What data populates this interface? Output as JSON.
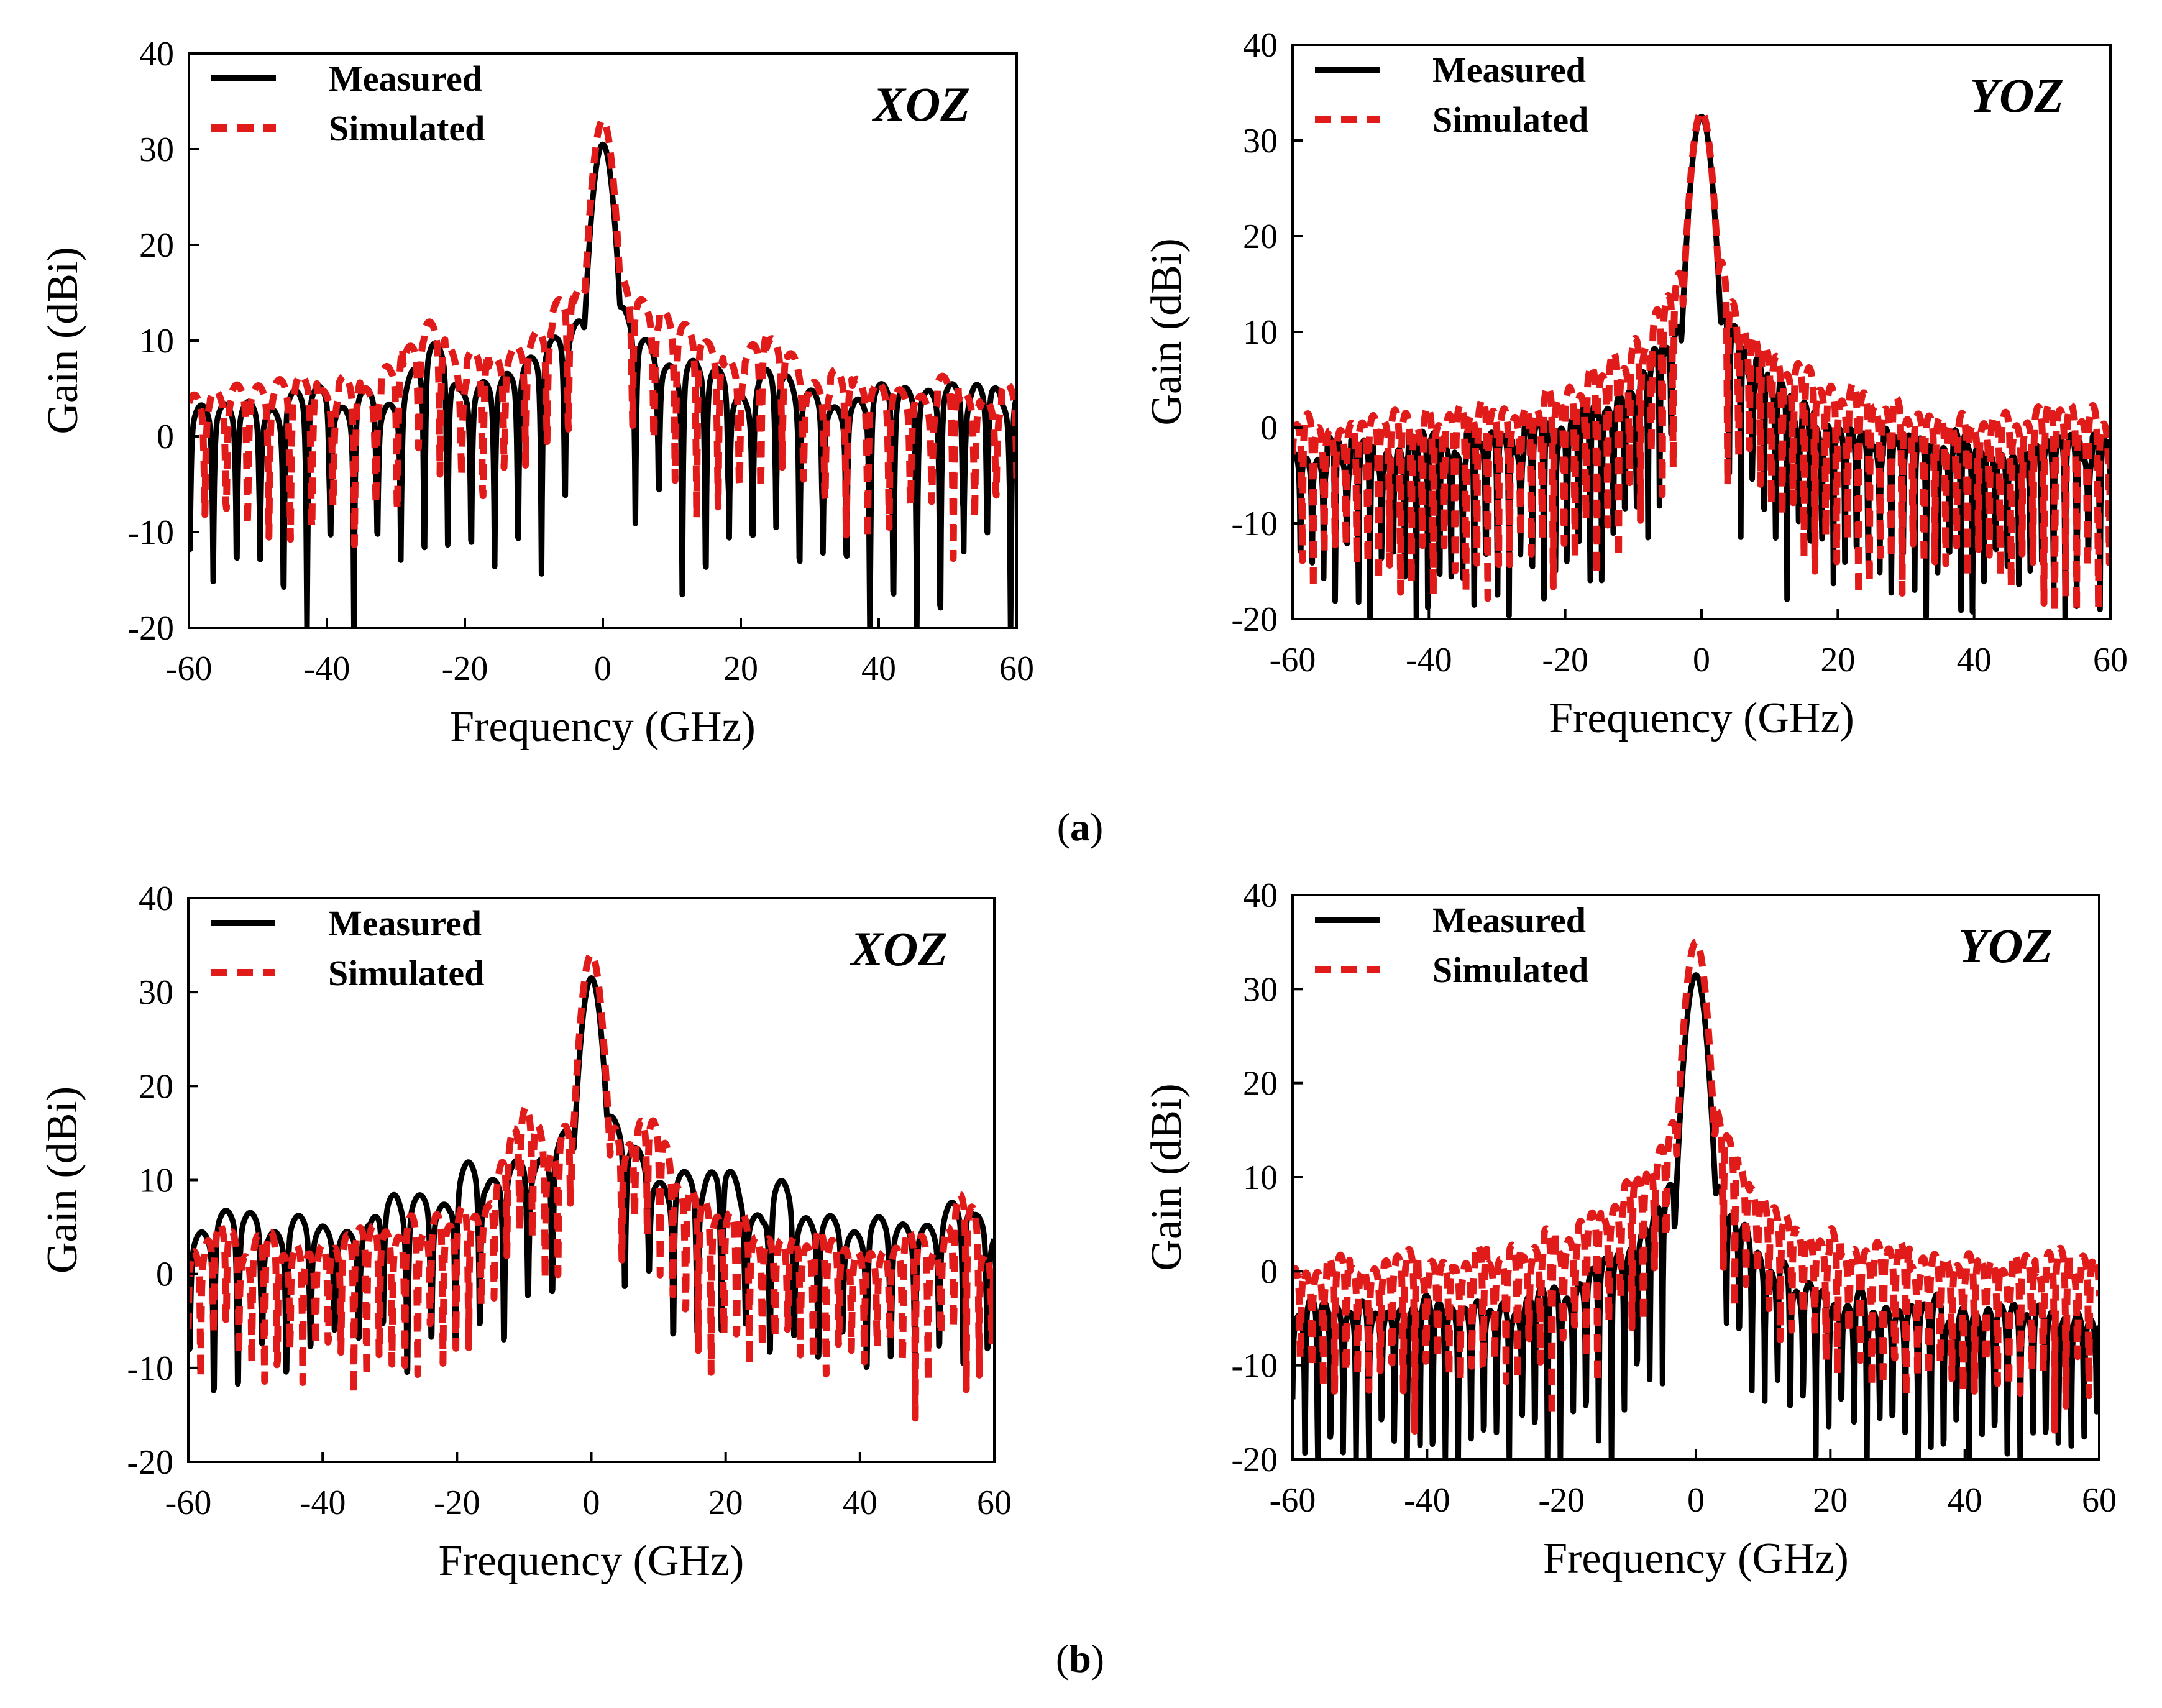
{
  "figure": {
    "captions": [
      {
        "open": "(",
        "letter": "a",
        "close": ")"
      },
      {
        "open": "(",
        "letter": "b",
        "close": ")"
      }
    ]
  },
  "chart_data": [
    {
      "type": "line",
      "panel": "a-left",
      "plane_label": "XOZ",
      "xlabel": "Frequency (GHz)",
      "ylabel": "Gain (dBi)",
      "xlim": [
        -60,
        60
      ],
      "ylim": [
        -20,
        40
      ],
      "xticks": [
        -60,
        -40,
        -20,
        0,
        20,
        40,
        60
      ],
      "yticks": [
        -20,
        -10,
        0,
        10,
        20,
        30,
        40
      ],
      "legend": {
        "position": "top-left",
        "entries": [
          "Measured",
          "Simulated"
        ]
      },
      "series": [
        {
          "name": "Measured",
          "color": "#000000",
          "dash": "solid",
          "peak": 30.5,
          "lobe_spacing": 3.4,
          "base_near": 16,
          "base_far": 4,
          "decay": 10,
          "depth": 26,
          "seed": 11,
          "features": [
            [
              -25,
              9,
              4
            ],
            [
              25,
              8,
              4
            ],
            [
              -56,
              4,
              3
            ],
            [
              55,
              7,
              3
            ],
            [
              4,
              9,
              2
            ],
            [
              -4,
              7,
              2
            ]
          ]
        },
        {
          "name": "Simulated",
          "color": "#e11a1a",
          "dash": "dashed",
          "peak": 33,
          "lobe_spacing": 3.1,
          "base_near": 20,
          "base_far": 5,
          "decay": 12,
          "depth": 18,
          "seed": 23,
          "features": [
            [
              -25,
              12,
              4
            ],
            [
              25,
              11,
              4
            ],
            [
              -55,
              5,
              3
            ],
            [
              56,
              5,
              3
            ],
            [
              4,
              10,
              2
            ],
            [
              -4,
              9,
              2
            ]
          ]
        }
      ]
    },
    {
      "type": "line",
      "panel": "a-right",
      "plane_label": "YOZ",
      "xlabel": "Frequency (GHz)",
      "ylabel": "Gain (dBi)",
      "xlim": [
        -60,
        60
      ],
      "ylim": [
        -20,
        40
      ],
      "xticks": [
        -60,
        -40,
        -20,
        0,
        20,
        40,
        60
      ],
      "yticks": [
        -20,
        -10,
        0,
        10,
        20,
        30,
        40
      ],
      "legend": {
        "position": "top-left",
        "entries": [
          "Measured",
          "Simulated"
        ]
      },
      "series": [
        {
          "name": "Measured",
          "color": "#000000",
          "dash": "solid",
          "peak": 32.5,
          "lobe_spacing": 1.7,
          "base_near": 18,
          "base_far": -2,
          "decay": 9,
          "depth": 20,
          "seed": 31,
          "features": []
        },
        {
          "name": "Simulated",
          "color": "#e11a1a",
          "dash": "dashed",
          "peak": 33,
          "lobe_spacing": 1.6,
          "base_near": 21,
          "base_far": 1,
          "decay": 10,
          "depth": 24,
          "seed": 37,
          "features": []
        }
      ]
    },
    {
      "type": "line",
      "panel": "b-left",
      "plane_label": "XOZ",
      "xlabel": "Frequency (GHz)",
      "ylabel": "Gain (dBi)",
      "xlim": [
        -60,
        60
      ],
      "ylim": [
        -20,
        40
      ],
      "xticks": [
        -60,
        -40,
        -20,
        0,
        20,
        40,
        60
      ],
      "yticks": [
        -20,
        -10,
        0,
        10,
        20,
        30,
        40
      ],
      "legend": {
        "position": "top-left",
        "entries": [
          "Measured",
          "Simulated"
        ]
      },
      "series": [
        {
          "name": "Measured",
          "color": "#000000",
          "dash": "solid",
          "peak": 31.5,
          "lobe_spacing": 3.6,
          "base_near": 18,
          "base_far": 5,
          "decay": 14,
          "depth": 20,
          "seed": 41,
          "features": [
            [
              -30,
              9,
              3
            ],
            [
              -18,
              11,
              3
            ],
            [
              19,
              11,
              3
            ],
            [
              28,
              9,
              3
            ],
            [
              54,
              8,
              3
            ]
          ]
        },
        {
          "name": "Simulated",
          "color": "#e11a1a",
          "dash": "dashed",
          "peak": 34,
          "lobe_spacing": 1.9,
          "base_near": 20,
          "base_far": 3,
          "decay": 12,
          "depth": 18,
          "seed": 43,
          "features": [
            [
              -10,
              17,
              3
            ],
            [
              8,
              17,
              3
            ],
            [
              -55,
              6,
              3
            ],
            [
              55,
              7,
              3
            ]
          ]
        }
      ]
    },
    {
      "type": "line",
      "panel": "b-right",
      "plane_label": "YOZ",
      "xlabel": "Frequency (GHz)",
      "ylabel": "Gain (dBi)",
      "xlim": [
        -60,
        60
      ],
      "ylim": [
        -20,
        40
      ],
      "xticks": [
        -60,
        -40,
        -20,
        0,
        20,
        40,
        60
      ],
      "yticks": [
        -20,
        -10,
        0,
        10,
        20,
        30,
        40
      ],
      "legend": {
        "position": "top-left",
        "entries": [
          "Measured",
          "Simulated"
        ]
      },
      "series": [
        {
          "name": "Measured",
          "color": "#000000",
          "dash": "solid",
          "peak": 31.5,
          "lobe_spacing": 1.9,
          "base_near": 17,
          "base_far": -4,
          "decay": 8,
          "depth": 20,
          "seed": 51,
          "features": []
        },
        {
          "name": "Simulated",
          "color": "#e11a1a",
          "dash": "dashed",
          "peak": 35,
          "lobe_spacing": 1.7,
          "base_near": 22,
          "base_far": 1,
          "decay": 10,
          "depth": 18,
          "seed": 53,
          "features": []
        }
      ]
    }
  ]
}
